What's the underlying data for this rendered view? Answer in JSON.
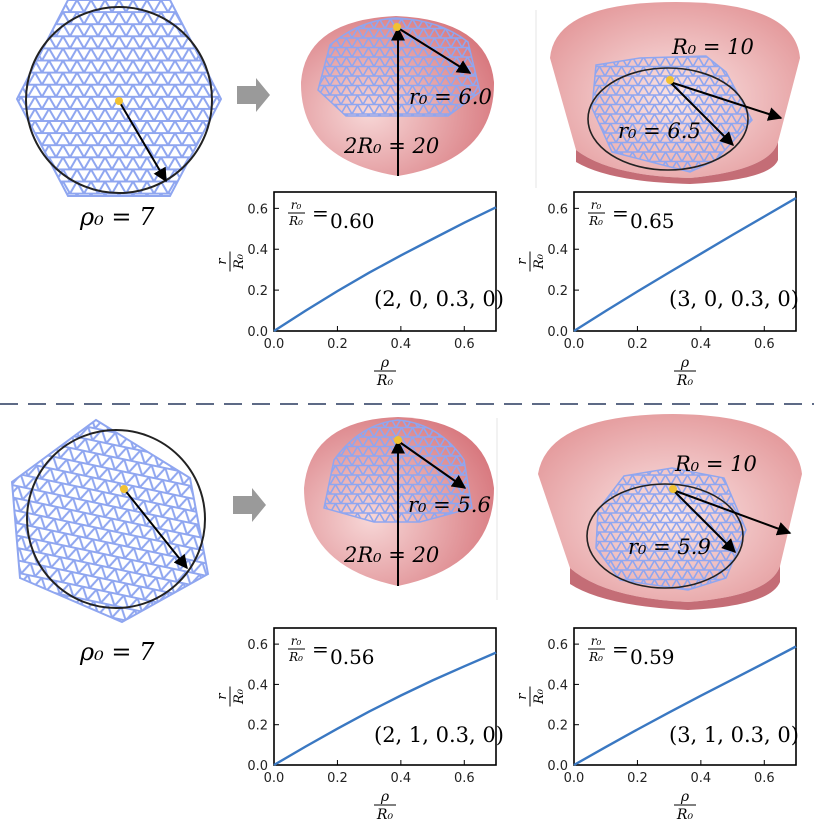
{
  "sections": [
    {
      "flat": {
        "rho_label": "ρ₀ = 7"
      },
      "dome": {
        "r_label": "r₀ = 6.0",
        "height_label": "2R₀ = 20"
      },
      "bowl": {
        "R_label": "R₀ = 10",
        "r_label": "r₀ = 6.5"
      },
      "plots": [
        {
          "ratio": "0.60",
          "params": "(2, 0, 0.3, 0)"
        },
        {
          "ratio": "0.65",
          "params": "(3, 0, 0.3, 0)"
        }
      ]
    },
    {
      "flat": {
        "rho_label": "ρ₀ = 7"
      },
      "dome": {
        "r_label": "r₀ = 5.6",
        "height_label": "2R₀ = 20"
      },
      "bowl": {
        "R_label": "R₀ = 10",
        "r_label": "r₀ = 5.9"
      },
      "plots": [
        {
          "ratio": "0.56",
          "params": "(2, 1, 0.3, 0)"
        },
        {
          "ratio": "0.59",
          "params": "(3, 1, 0.3, 0)"
        }
      ]
    }
  ],
  "axis": {
    "x_ticks": [
      "0.0",
      "0.2",
      "0.4",
      "0.6"
    ],
    "y_ticks": [
      "0.0",
      "0.2",
      "0.4",
      "0.6"
    ]
  },
  "chart_data": [
    {
      "type": "line",
      "x": [
        0.0,
        0.1,
        0.2,
        0.3,
        0.4,
        0.5,
        0.6,
        0.7
      ],
      "y": [
        0.0,
        0.1,
        0.195,
        0.285,
        0.37,
        0.45,
        0.53,
        0.605
      ],
      "xlim": [
        0,
        0.7
      ],
      "ylim": [
        0,
        0.68
      ],
      "grid": false,
      "color": "#3a78c2"
    },
    {
      "type": "line",
      "x": [
        0.0,
        0.1,
        0.2,
        0.3,
        0.4,
        0.5,
        0.6,
        0.7
      ],
      "y": [
        0.0,
        0.098,
        0.193,
        0.286,
        0.378,
        0.47,
        0.56,
        0.65
      ],
      "xlim": [
        0,
        0.7
      ],
      "ylim": [
        0,
        0.68
      ],
      "grid": false,
      "color": "#3a78c2"
    },
    {
      "type": "line",
      "x": [
        0.0,
        0.1,
        0.2,
        0.3,
        0.4,
        0.5,
        0.6,
        0.7
      ],
      "y": [
        0.0,
        0.092,
        0.18,
        0.265,
        0.345,
        0.42,
        0.49,
        0.558
      ],
      "xlim": [
        0,
        0.7
      ],
      "ylim": [
        0,
        0.68
      ],
      "grid": false,
      "color": "#3a78c2"
    },
    {
      "type": "line",
      "x": [
        0.0,
        0.1,
        0.2,
        0.3,
        0.4,
        0.5,
        0.6,
        0.7
      ],
      "y": [
        0.0,
        0.089,
        0.176,
        0.261,
        0.344,
        0.425,
        0.506,
        0.588
      ],
      "xlim": [
        0,
        0.7
      ],
      "ylim": [
        0,
        0.68
      ],
      "grid": false,
      "color": "#3a78c2"
    }
  ],
  "colors": {
    "mesh": "#8fa6f0",
    "shell": "#e79b9b",
    "curve": "#3a78c2",
    "node": "#f1c232",
    "divider": "#5d6a86",
    "arrow": "#9a9a9a"
  }
}
